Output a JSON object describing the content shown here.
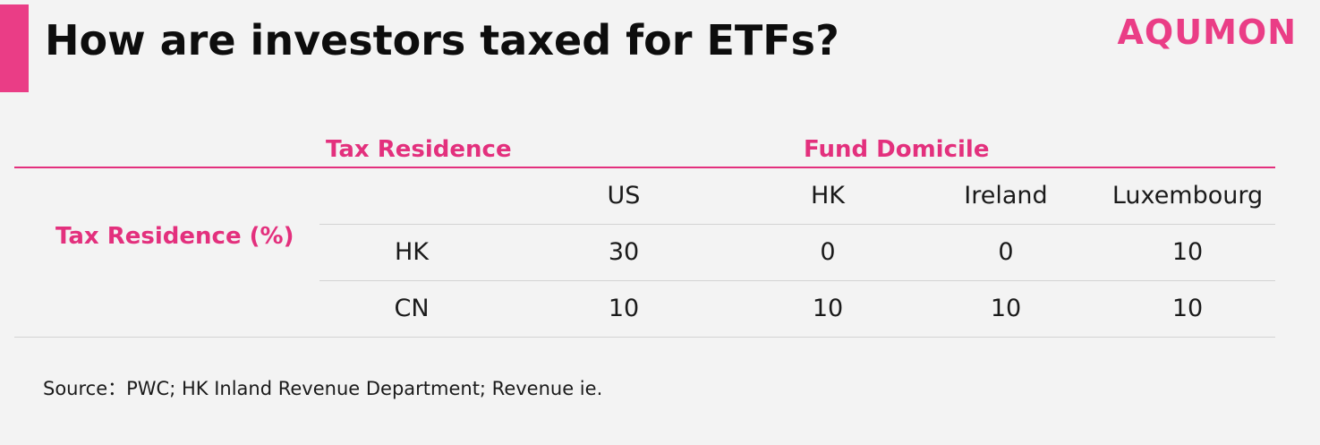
{
  "brand": {
    "logo_text": "AQUMON",
    "accent_color": "#ea3d86"
  },
  "header": {
    "title": "How are investors taxed for ETFs?"
  },
  "table": {
    "group_headers": {
      "tax_residence": "Tax Residence",
      "fund_domicile": "Fund Domicile"
    },
    "row_group_label": "Tax Residence (%)",
    "columns": [
      "US",
      "HK",
      "Ireland",
      "Luxembourg"
    ],
    "rows": [
      {
        "label": "HK",
        "values": [
          "30",
          "0",
          "0",
          "10"
        ]
      },
      {
        "label": "CN",
        "values": [
          "10",
          "10",
          "10",
          "10"
        ]
      }
    ]
  },
  "footer": {
    "source": "Source：PWC; HK Inland Revenue Department; Revenue ie."
  }
}
